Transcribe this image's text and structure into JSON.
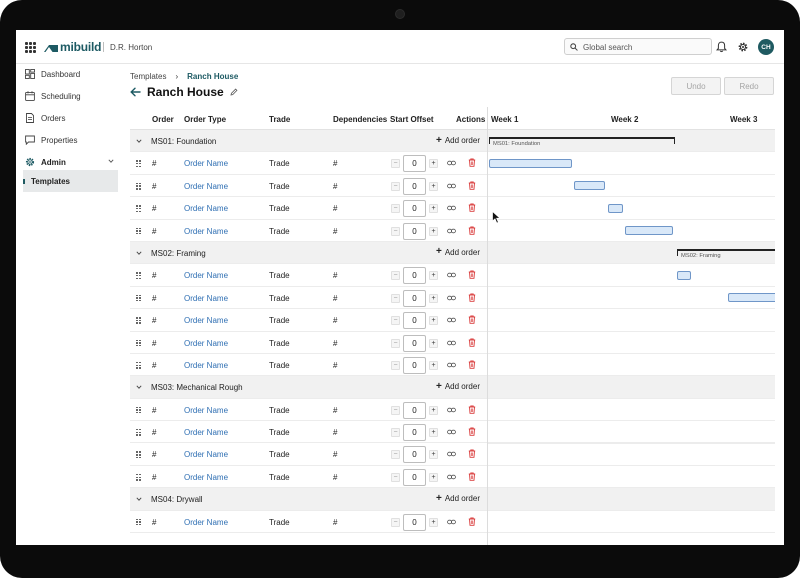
{
  "app": {
    "brand": "mibuild",
    "company": "D.R. Horton",
    "search_placeholder": "Global search",
    "avatar_initials": "CH",
    "accent_color": "#1d5a63",
    "link_color": "#2f6fb3"
  },
  "sidebar": {
    "items": [
      {
        "label": "Dashboard",
        "icon": "dashboard-icon"
      },
      {
        "label": "Scheduling",
        "icon": "calendar-icon"
      },
      {
        "label": "Orders",
        "icon": "document-icon"
      },
      {
        "label": "Properties",
        "icon": "chat-icon"
      },
      {
        "label": "Admin",
        "icon": "gear-icon"
      }
    ],
    "sub_item": "Templates"
  },
  "header": {
    "breadcrumb": [
      "Templates",
      "Ranch House"
    ],
    "title": "Ranch House",
    "undo_label": "Undo",
    "redo_label": "Redo"
  },
  "table": {
    "columns": [
      "Order",
      "Order Type",
      "Trade",
      "Dependencies",
      "Start Offset",
      "Actions"
    ],
    "add_order_label": "Add order",
    "row_order": "#",
    "row_type": "Order Name",
    "row_trade": "Trade",
    "row_dependency": "#",
    "row_offset": "0"
  },
  "gantt": {
    "weeks": [
      "Week 1",
      "Week 2",
      "Week 3"
    ]
  },
  "milestones": [
    {
      "name": "MS01: Foundation",
      "rows": 4
    },
    {
      "name": "MS02: Framing",
      "rows": 5
    },
    {
      "name": "MS03: Mechanical Rough",
      "rows": 4
    },
    {
      "name": "MS04: Drywall",
      "rows": 1
    }
  ],
  "gantt_milestone_labels": [
    "MS01: Foundation",
    "MS02: Framing"
  ]
}
